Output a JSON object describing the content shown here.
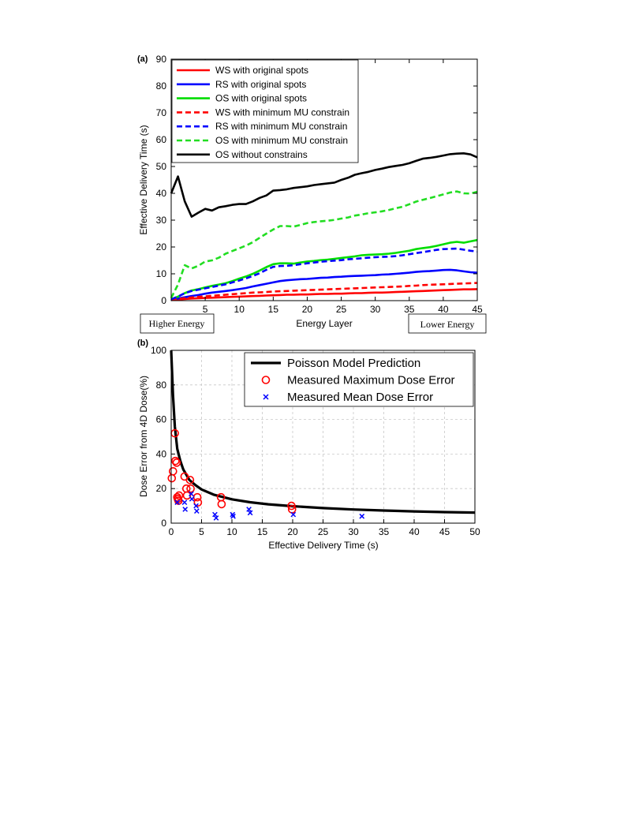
{
  "chart_data": [
    {
      "panel": "(a)",
      "type": "line",
      "xlabel": "Energy Layer",
      "ylabel": "Effective Delivery Time (s)",
      "xlim": [
        0,
        45
      ],
      "ylim": [
        0,
        90
      ],
      "xticks": [
        5,
        10,
        15,
        20,
        25,
        30,
        35,
        40,
        45
      ],
      "yticks": [
        0,
        10,
        20,
        30,
        40,
        50,
        60,
        70,
        80,
        90
      ],
      "grid": false,
      "legend_position": "top-left",
      "annotations": {
        "left": "Higher Energy",
        "right": "Lower Energy"
      },
      "x": [
        0,
        1,
        2,
        3,
        4,
        5,
        6,
        7,
        8,
        9,
        10,
        11,
        12,
        13,
        14,
        15,
        16,
        17,
        18,
        19,
        20,
        21,
        22,
        23,
        24,
        25,
        26,
        27,
        28,
        29,
        30,
        31,
        32,
        33,
        34,
        35,
        36,
        37,
        38,
        39,
        40,
        41,
        42,
        43,
        44,
        45
      ],
      "series": [
        {
          "name": "WS with original spots",
          "color": "#ff0000",
          "dash": "solid",
          "values": [
            0.2,
            0.4,
            0.6,
            0.8,
            0.9,
            1.0,
            1.1,
            1.2,
            1.3,
            1.4,
            1.5,
            1.6,
            1.7,
            1.8,
            1.9,
            2.0,
            2.1,
            2.2,
            2.2,
            2.3,
            2.3,
            2.4,
            2.5,
            2.5,
            2.6,
            2.6,
            2.7,
            2.8,
            2.8,
            2.9,
            3.0,
            3.0,
            3.1,
            3.2,
            3.3,
            3.4,
            3.5,
            3.6,
            3.7,
            3.8,
            3.9,
            4.0,
            4.1,
            4.2,
            4.2,
            4.3
          ]
        },
        {
          "name": "RS with original spots",
          "color": "#0000ff",
          "dash": "solid",
          "values": [
            0.3,
            0.8,
            1.3,
            1.7,
            2.1,
            2.6,
            3.0,
            3.3,
            3.6,
            3.9,
            4.3,
            4.7,
            5.3,
            5.8,
            6.3,
            6.8,
            7.3,
            7.6,
            7.8,
            8.0,
            8.1,
            8.3,
            8.5,
            8.6,
            8.8,
            8.9,
            9.1,
            9.2,
            9.3,
            9.4,
            9.5,
            9.7,
            9.8,
            10.0,
            10.2,
            10.4,
            10.7,
            10.9,
            11.0,
            11.2,
            11.4,
            11.5,
            11.3,
            10.9,
            10.6,
            10.4
          ]
        },
        {
          "name": "OS with original spots",
          "color": "#00dd00",
          "dash": "solid",
          "values": [
            0.5,
            1.5,
            2.8,
            3.8,
            4.3,
            4.9,
            5.5,
            6.0,
            6.5,
            7.3,
            8.2,
            9.0,
            10.0,
            11.2,
            12.5,
            13.6,
            13.9,
            13.9,
            13.8,
            14.2,
            14.6,
            14.8,
            15.1,
            15.3,
            15.6,
            15.9,
            16.2,
            16.5,
            16.9,
            17.1,
            17.2,
            17.3,
            17.5,
            17.8,
            18.2,
            18.6,
            19.2,
            19.6,
            19.9,
            20.4,
            21.0,
            21.6,
            21.9,
            21.6,
            22.1,
            22.6
          ]
        },
        {
          "name": "WS with minimum MU constrain",
          "color": "#ff0000",
          "dash": "dashed",
          "values": [
            0.3,
            0.6,
            0.9,
            1.2,
            1.4,
            1.6,
            1.8,
            2.0,
            2.2,
            2.4,
            2.6,
            2.8,
            3.0,
            3.1,
            3.2,
            3.4,
            3.5,
            3.6,
            3.7,
            3.8,
            3.9,
            4.0,
            4.1,
            4.2,
            4.3,
            4.4,
            4.5,
            4.6,
            4.7,
            4.8,
            4.9,
            5.0,
            5.1,
            5.2,
            5.3,
            5.5,
            5.6,
            5.8,
            5.9,
            6.0,
            6.1,
            6.2,
            6.3,
            6.4,
            6.5,
            6.6
          ]
        },
        {
          "name": "RS with minimum MU constrain",
          "color": "#0000ff",
          "dash": "dashed",
          "values": [
            0.5,
            1.5,
            2.8,
            3.6,
            4.1,
            4.6,
            5.1,
            5.6,
            6.1,
            6.8,
            7.5,
            8.3,
            9.2,
            10.2,
            11.5,
            12.6,
            12.9,
            13.0,
            13.2,
            13.6,
            13.9,
            14.2,
            14.5,
            14.7,
            14.9,
            15.1,
            15.4,
            15.6,
            15.8,
            16.0,
            16.2,
            16.3,
            16.4,
            16.6,
            16.9,
            17.3,
            17.7,
            18.1,
            18.5,
            18.9,
            19.2,
            19.3,
            19.4,
            19.0,
            18.6,
            18.3
          ]
        },
        {
          "name": "OS with minimum MU constrain",
          "color": "#22dd22",
          "dash": "dashed",
          "values": [
            1.0,
            6.0,
            13.2,
            12.0,
            13.0,
            14.6,
            15.0,
            16.0,
            17.5,
            18.5,
            19.5,
            20.5,
            21.8,
            23.4,
            25.0,
            26.5,
            27.8,
            27.8,
            27.6,
            28.2,
            28.9,
            29.3,
            29.6,
            29.8,
            30.1,
            30.6,
            31.0,
            31.7,
            32.1,
            32.6,
            32.9,
            33.3,
            33.8,
            34.4,
            35.0,
            35.9,
            36.9,
            37.6,
            38.2,
            38.9,
            39.6,
            40.3,
            40.7,
            40.0,
            39.9,
            40.6
          ]
        },
        {
          "name": "OS without constrains",
          "color": "#000000",
          "dash": "solid",
          "values": [
            40.0,
            46.3,
            37.0,
            31.3,
            32.8,
            34.2,
            33.6,
            34.8,
            35.2,
            35.7,
            36.0,
            36.0,
            37.0,
            38.3,
            39.2,
            41.0,
            41.2,
            41.5,
            42.0,
            42.3,
            42.6,
            43.1,
            43.4,
            43.7,
            44.0,
            45.0,
            45.8,
            46.9,
            47.5,
            48.0,
            48.7,
            49.2,
            49.8,
            50.2,
            50.6,
            51.2,
            52.1,
            52.9,
            53.2,
            53.6,
            54.1,
            54.6,
            54.8,
            54.9,
            54.5,
            53.4
          ]
        }
      ]
    },
    {
      "panel": "(b)",
      "type": "scatter",
      "xlabel": "Effective Delivery Time (s)",
      "ylabel": "Dose Error from 4D Dose(%)",
      "xlim": [
        0,
        50
      ],
      "ylim": [
        0,
        100
      ],
      "xticks": [
        0,
        5,
        10,
        15,
        20,
        25,
        30,
        35,
        40,
        45,
        50
      ],
      "yticks": [
        0,
        20,
        40,
        60,
        80,
        100
      ],
      "grid": true,
      "legend_position": "top-right",
      "series": [
        {
          "name": "Poisson Model Prediction",
          "kind": "line",
          "color": "#000000",
          "x": [
            0.0,
            0.3,
            0.6,
            1,
            1.5,
            2,
            3,
            4,
            5,
            7,
            10,
            13,
            16,
            20,
            25,
            30,
            35,
            40,
            45,
            50
          ],
          "values": [
            100.0,
            74.0,
            56.0,
            43.0,
            36.0,
            31.0,
            25.0,
            22.0,
            19.5,
            16.5,
            13.8,
            12.1,
            10.9,
            9.8,
            8.7,
            7.9,
            7.3,
            6.8,
            6.4,
            6.1
          ]
        },
        {
          "name": "Measured Maximum Dose Error",
          "kind": "scatter",
          "marker": "circle",
          "color": "#ff0000",
          "x": [
            0.1,
            0.3,
            0.6,
            0.7,
            0.9,
            1.0,
            1.1,
            1.2,
            1.3,
            2.2,
            2.5,
            2.6,
            3.1,
            3.2,
            4.3,
            4.4,
            8.2,
            8.3,
            19.8,
            19.9
          ],
          "values": [
            26,
            30,
            52,
            36,
            35,
            15,
            14,
            13,
            16,
            27,
            20,
            16,
            25,
            20,
            15,
            12,
            15,
            11,
            10,
            8
          ]
        },
        {
          "name": "Measured Mean Dose Error",
          "kind": "scatter",
          "marker": "x",
          "color": "#0000ff",
          "x": [
            1.0,
            2.2,
            2.3,
            3.3,
            3.4,
            4.1,
            4.2,
            7.2,
            7.4,
            10.1,
            10.2,
            12.8,
            13.0,
            20.1,
            31.4
          ],
          "values": [
            12,
            12,
            8,
            17,
            14,
            10,
            7,
            5,
            3,
            5,
            4,
            8,
            6,
            5,
            4
          ]
        }
      ]
    }
  ]
}
